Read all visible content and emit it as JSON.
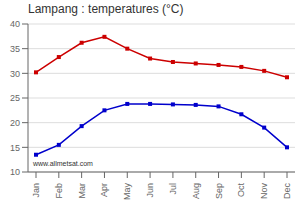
{
  "chart_data": {
    "type": "line",
    "title": "Lampang : temperatures (°C)",
    "categories": [
      "Jan",
      "Feb",
      "Mar",
      "Apr",
      "May",
      "Jun",
      "Jul",
      "Aug",
      "Sep",
      "Oct",
      "Nov",
      "Dec"
    ],
    "series": [
      {
        "color": "#cc0000",
        "marker": "square",
        "values": [
          30.2,
          33.3,
          36.2,
          37.4,
          35.0,
          33.0,
          32.3,
          32.0,
          31.7,
          31.3,
          30.5,
          29.2
        ]
      },
      {
        "color": "#0000cc",
        "marker": "square",
        "values": [
          13.5,
          15.5,
          19.3,
          22.5,
          23.8,
          23.8,
          23.7,
          23.6,
          23.3,
          21.7,
          19.0,
          15.0
        ]
      }
    ],
    "ylim": [
      10,
      40
    ],
    "yticks": [
      10,
      15,
      20,
      25,
      30,
      35,
      40
    ],
    "grid": true,
    "annotation": "www.allmetsat.com"
  }
}
